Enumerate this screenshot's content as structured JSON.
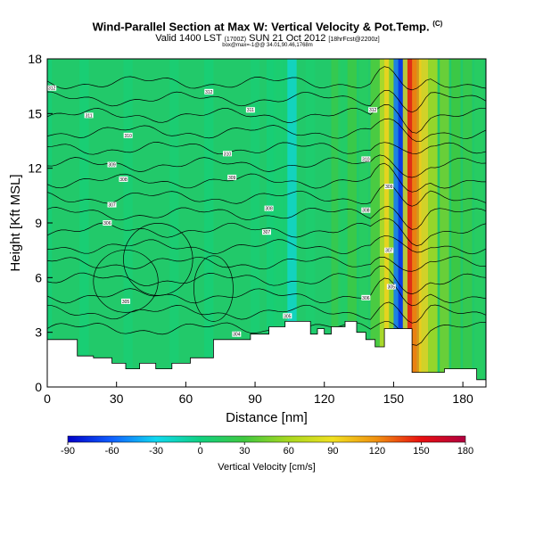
{
  "chart_data": {
    "type": "heatmap",
    "title": "Wind-Parallel Section at Max W: Vertical Velocity & Pot.Temp.",
    "title_mark": "(C)",
    "subtitle": "Valid 1400 LST",
    "subtitle_small1": "(1700Z)",
    "subtitle_main2": "SUN 21 Oct 2012",
    "subtitle_small2": "[18hrFcst@2200z]",
    "info_line": "box@max=-1@@ 34.01,90.46,1768m",
    "xlabel": "Distance [nm]",
    "ylabel": "Height [Kft MSL]",
    "xlim": [
      0,
      190
    ],
    "ylim": [
      0,
      18
    ],
    "xticks": [
      0,
      30,
      60,
      90,
      120,
      150,
      180
    ],
    "yticks": [
      0,
      3,
      6,
      9,
      12,
      15,
      18
    ],
    "colorbar": {
      "label": "Vertical Velocity [cm/s]",
      "ticks": [
        -90,
        -60,
        -30,
        0,
        30,
        60,
        90,
        120,
        150,
        180
      ],
      "range": [
        -90,
        180
      ]
    },
    "columns": [
      {
        "x": 0,
        "w": 4
      },
      {
        "x": 16,
        "w": 5
      },
      {
        "x": 35,
        "w": 6
      },
      {
        "x": 55,
        "w": 6
      },
      {
        "x": 70,
        "w": 5
      },
      {
        "x": 90,
        "w": 6
      },
      {
        "x": 97,
        "w": 4
      },
      {
        "x": 100,
        "w": 7
      },
      {
        "x": 103,
        "w": 6
      },
      {
        "x": 106,
        "w": -20
      },
      {
        "x": 114,
        "w": 8
      },
      {
        "x": 125,
        "w": 25
      },
      {
        "x": 128,
        "w": 12
      },
      {
        "x": 132,
        "w": 28
      },
      {
        "x": 137,
        "w": 15
      },
      {
        "x": 142,
        "w": 35
      },
      {
        "x": 146,
        "w": 70
      },
      {
        "x": 148,
        "w": 95
      },
      {
        "x": 150,
        "w": 45
      },
      {
        "x": 152,
        "w": -55
      },
      {
        "x": 154,
        "w": -75
      },
      {
        "x": 156,
        "w": 80
      },
      {
        "x": 158,
        "w": 150
      },
      {
        "x": 160,
        "w": 120
      },
      {
        "x": 163,
        "w": 95
      },
      {
        "x": 167,
        "w": 60
      },
      {
        "x": 172,
        "w": 45
      },
      {
        "x": 177,
        "w": 30
      },
      {
        "x": 182,
        "w": 25
      },
      {
        "x": 187,
        "w": 15
      }
    ],
    "terrain": [
      [
        0,
        2.6
      ],
      [
        13,
        2.6
      ],
      [
        13,
        1.7
      ],
      [
        20,
        1.7
      ],
      [
        20,
        1.6
      ],
      [
        28,
        1.6
      ],
      [
        28,
        1.3
      ],
      [
        34,
        1.3
      ],
      [
        34,
        1.0
      ],
      [
        40,
        1.0
      ],
      [
        40,
        1.3
      ],
      [
        47,
        1.3
      ],
      [
        47,
        1.0
      ],
      [
        54,
        1.0
      ],
      [
        54,
        1.3
      ],
      [
        62,
        1.3
      ],
      [
        62,
        1.6
      ],
      [
        72,
        1.6
      ],
      [
        72,
        2.6
      ],
      [
        80,
        2.6
      ],
      [
        80,
        2.6
      ],
      [
        88,
        2.6
      ],
      [
        88,
        2.9
      ],
      [
        96,
        2.9
      ],
      [
        96,
        3.3
      ],
      [
        103,
        3.3
      ],
      [
        103,
        3.6
      ],
      [
        114,
        3.6
      ],
      [
        114,
        2.9
      ],
      [
        117,
        2.9
      ],
      [
        117,
        3.2
      ],
      [
        120,
        3.2
      ],
      [
        120,
        2.9
      ],
      [
        123,
        2.9
      ],
      [
        123,
        3.3
      ],
      [
        129,
        3.3
      ],
      [
        129,
        3.6
      ],
      [
        134,
        3.6
      ],
      [
        134,
        3.0
      ],
      [
        138,
        3.0
      ],
      [
        138,
        2.6
      ],
      [
        142,
        2.6
      ],
      [
        142,
        2.2
      ],
      [
        146,
        2.2
      ],
      [
        146,
        3.2
      ],
      [
        158,
        3.2
      ],
      [
        158,
        0.8
      ],
      [
        172,
        0.8
      ],
      [
        172,
        1.0
      ],
      [
        186,
        1.0
      ],
      [
        186,
        0.4
      ],
      [
        190,
        0.4
      ]
    ],
    "contour_labels": [
      {
        "x": 2,
        "y": 16.4,
        "v": "312"
      },
      {
        "x": 18,
        "y": 14.9,
        "v": "311"
      },
      {
        "x": 35,
        "y": 13.8,
        "v": "310"
      },
      {
        "x": 28,
        "y": 12.2,
        "v": "309"
      },
      {
        "x": 33,
        "y": 11.4,
        "v": "308"
      },
      {
        "x": 28,
        "y": 10.0,
        "v": "307"
      },
      {
        "x": 26,
        "y": 9.0,
        "v": "306"
      },
      {
        "x": 34,
        "y": 4.7,
        "v": "305"
      },
      {
        "x": 70,
        "y": 16.2,
        "v": "312"
      },
      {
        "x": 88,
        "y": 15.2,
        "v": "311"
      },
      {
        "x": 78,
        "y": 12.8,
        "v": "310"
      },
      {
        "x": 80,
        "y": 11.5,
        "v": "309"
      },
      {
        "x": 96,
        "y": 9.8,
        "v": "308"
      },
      {
        "x": 95,
        "y": 8.5,
        "v": "307"
      },
      {
        "x": 82,
        "y": 2.9,
        "v": "304"
      },
      {
        "x": 104,
        "y": 3.9,
        "v": "305"
      },
      {
        "x": 141,
        "y": 15.2,
        "v": "312"
      },
      {
        "x": 138,
        "y": 12.5,
        "v": "310"
      },
      {
        "x": 148,
        "y": 11.0,
        "v": "309"
      },
      {
        "x": 138,
        "y": 9.7,
        "v": "308"
      },
      {
        "x": 148,
        "y": 7.5,
        "v": "307"
      },
      {
        "x": 138,
        "y": 4.9,
        "v": "306"
      },
      {
        "x": 149,
        "y": 5.5,
        "v": "305"
      }
    ]
  }
}
